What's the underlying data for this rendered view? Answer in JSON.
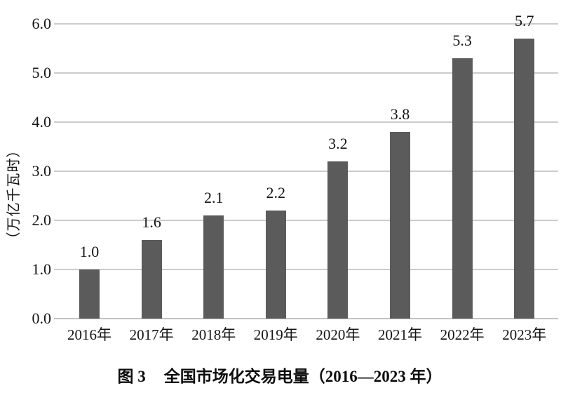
{
  "chart_data": {
    "type": "bar",
    "caption": {
      "prefix": "图 3",
      "title": "全国市场化交易电量（2016—2023 年）"
    },
    "categories": [
      "2016年",
      "2017年",
      "2018年",
      "2019年",
      "2020年",
      "2021年",
      "2022年",
      "2023年"
    ],
    "values": [
      1.0,
      1.6,
      2.1,
      2.2,
      3.2,
      3.8,
      5.3,
      5.7
    ],
    "data_labels": [
      "1.0",
      "1.6",
      "2.1",
      "2.2",
      "3.2",
      "3.8",
      "5.3",
      "5.7"
    ],
    "xlabel": "",
    "ylabel": "（万亿千瓦时）",
    "ylim": [
      0,
      6
    ],
    "ytick_interval": 1.0,
    "ytick_labels": [
      "0.0",
      "1.0",
      "2.0",
      "3.0",
      "4.0",
      "5.0",
      "6.0"
    ],
    "grid": true,
    "legend": false,
    "colors": {
      "bar": "#5b5b5b",
      "gridline": "#cccccc",
      "axis_line": "#c2c2c2",
      "text": "#141414",
      "background": "#ffffff"
    }
  }
}
